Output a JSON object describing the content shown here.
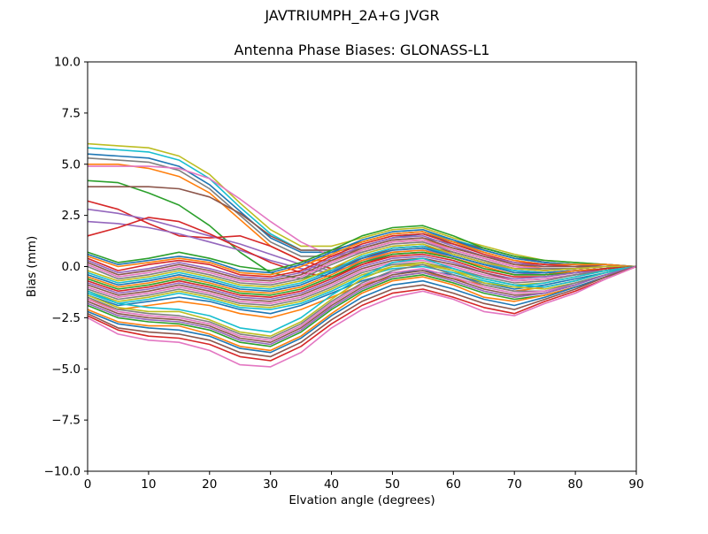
{
  "figure": {
    "suptitle": "JAVTRIUMPH_2A+G JVGR",
    "axes_title": "Antenna Phase Biases: GLONASS-L1"
  },
  "chart_data": {
    "type": "line",
    "suptitle": "JAVTRIUMPH_2A+G JVGR",
    "title": "Antenna Phase Biases: GLONASS-L1",
    "xlabel": "Elvation angle (degrees)",
    "ylabel": "Bias (mm)",
    "xlim": [
      0,
      90
    ],
    "ylim": [
      -10,
      10
    ],
    "grid": false,
    "legend": "none",
    "x_ticks": [
      0,
      10,
      20,
      30,
      40,
      50,
      60,
      70,
      80,
      90
    ],
    "y_ticks": [
      10.0,
      7.5,
      5.0,
      2.5,
      0.0,
      -2.5,
      -5.0,
      -7.5,
      -10.0
    ],
    "y_tick_labels": [
      "10.0",
      "7.5",
      "5.0",
      "2.5",
      "0.0",
      "−2.5",
      "−5.0",
      "−7.5",
      "−10.0"
    ],
    "x": [
      0,
      5,
      10,
      15,
      20,
      25,
      30,
      35,
      40,
      45,
      50,
      55,
      60,
      65,
      70,
      75,
      80,
      85,
      90
    ],
    "series": [
      {
        "name": "s01",
        "color": "#bcbd22",
        "values": [
          6.0,
          5.9,
          5.8,
          5.4,
          4.5,
          3.1,
          1.8,
          1.0,
          1.0,
          1.4,
          1.8,
          1.9,
          1.4,
          1.0,
          0.6,
          0.3,
          0.2,
          0.1,
          0.0
        ]
      },
      {
        "name": "s02",
        "color": "#17becf",
        "values": [
          5.8,
          5.7,
          5.6,
          5.2,
          4.3,
          2.9,
          1.6,
          0.8,
          0.8,
          1.2,
          1.6,
          1.7,
          1.3,
          0.9,
          0.5,
          0.2,
          0.1,
          0.1,
          0.0
        ]
      },
      {
        "name": "s03",
        "color": "#1f77b4",
        "values": [
          5.5,
          5.4,
          5.3,
          4.9,
          4.0,
          2.7,
          1.4,
          0.7,
          0.7,
          1.0,
          1.4,
          1.6,
          1.2,
          0.8,
          0.4,
          0.2,
          0.1,
          0.0,
          0.0
        ]
      },
      {
        "name": "s04",
        "color": "#7f7f7f",
        "values": [
          5.3,
          5.2,
          5.1,
          4.7,
          3.8,
          2.5,
          1.2,
          0.5,
          0.5,
          0.9,
          1.3,
          1.4,
          1.1,
          0.7,
          0.3,
          0.1,
          0.0,
          0.0,
          0.0
        ]
      },
      {
        "name": "s05",
        "color": "#ff7f0e",
        "values": [
          5.0,
          5.0,
          4.8,
          4.4,
          3.6,
          2.3,
          1.0,
          0.3,
          0.3,
          0.8,
          1.2,
          1.3,
          0.9,
          0.5,
          0.1,
          -0.1,
          -0.1,
          0.0,
          0.0
        ]
      },
      {
        "name": "s06",
        "color": "#e377c2",
        "values": [
          4.9,
          4.9,
          4.9,
          4.8,
          4.3,
          3.3,
          2.2,
          1.2,
          0.5,
          0.7,
          1.1,
          1.2,
          0.8,
          0.4,
          0.0,
          -0.2,
          -0.1,
          0.0,
          0.0
        ]
      },
      {
        "name": "s07",
        "color": "#2ca02c",
        "values": [
          4.2,
          4.1,
          3.6,
          3.0,
          2.0,
          0.7,
          -0.3,
          -0.6,
          -0.2,
          0.4,
          0.9,
          1.0,
          0.6,
          0.2,
          -0.2,
          -0.3,
          -0.2,
          -0.1,
          0.0
        ]
      },
      {
        "name": "s08",
        "color": "#8c564b",
        "values": [
          3.9,
          3.9,
          3.9,
          3.8,
          3.4,
          2.6,
          1.5,
          0.8,
          0.8,
          1.2,
          1.6,
          1.7,
          1.2,
          0.9,
          0.5,
          0.2,
          0.1,
          0.0,
          0.0
        ]
      },
      {
        "name": "s09",
        "color": "#d62728",
        "values": [
          3.2,
          2.8,
          2.1,
          1.5,
          1.4,
          1.5,
          1.0,
          0.3,
          -0.1,
          0.4,
          0.9,
          1.0,
          0.7,
          0.3,
          -0.1,
          -0.2,
          -0.1,
          0.0,
          0.0
        ]
      },
      {
        "name": "s10",
        "color": "#9467bd",
        "values": [
          2.8,
          2.6,
          2.3,
          1.9,
          1.5,
          1.1,
          0.6,
          0.1,
          -0.2,
          0.3,
          0.8,
          0.9,
          0.6,
          0.2,
          -0.2,
          -0.3,
          -0.2,
          -0.1,
          0.0
        ]
      },
      {
        "name": "s11",
        "color": "#9467bd",
        "values": [
          2.2,
          2.1,
          1.9,
          1.6,
          1.2,
          0.8,
          0.3,
          -0.1,
          -0.3,
          0.2,
          0.7,
          0.8,
          0.5,
          0.1,
          -0.3,
          -0.4,
          -0.2,
          -0.1,
          0.0
        ]
      },
      {
        "name": "s12",
        "color": "#d62728",
        "values": [
          1.5,
          1.9,
          2.4,
          2.2,
          1.6,
          0.9,
          0.2,
          -0.3,
          -0.5,
          0.1,
          0.6,
          0.7,
          0.4,
          0.0,
          -0.4,
          -0.4,
          -0.2,
          -0.1,
          0.0
        ]
      },
      {
        "name": "s13",
        "color": "#2ca02c",
        "values": [
          0.7,
          0.2,
          0.4,
          0.7,
          0.4,
          0.0,
          -0.2,
          0.2,
          0.8,
          1.5,
          1.9,
          2.0,
          1.5,
          0.9,
          0.5,
          0.3,
          0.2,
          0.1,
          0.0
        ]
      },
      {
        "name": "s14",
        "color": "#1f77b4",
        "values": [
          0.6,
          0.1,
          0.3,
          0.5,
          0.3,
          -0.2,
          -0.3,
          0.1,
          0.7,
          1.3,
          1.7,
          1.8,
          1.3,
          0.8,
          0.4,
          0.2,
          0.1,
          0.1,
          0.0
        ]
      },
      {
        "name": "s15",
        "color": "#ff7f0e",
        "values": [
          0.5,
          0.0,
          0.2,
          0.4,
          0.2,
          -0.3,
          -0.4,
          0.0,
          0.6,
          1.2,
          1.6,
          1.7,
          1.2,
          0.7,
          0.3,
          0.1,
          0.1,
          0.1,
          0.0
        ]
      },
      {
        "name": "s16",
        "color": "#d62728",
        "values": [
          0.4,
          -0.2,
          0.1,
          0.3,
          0.1,
          -0.4,
          -0.5,
          -0.2,
          0.5,
          1.1,
          1.5,
          1.6,
          1.1,
          0.6,
          0.2,
          0.1,
          0.0,
          0.0,
          0.0
        ]
      },
      {
        "name": "s17",
        "color": "#9467bd",
        "values": [
          0.3,
          -0.3,
          -0.1,
          0.2,
          -0.1,
          -0.5,
          -0.6,
          -0.3,
          0.4,
          1.0,
          1.4,
          1.5,
          1.0,
          0.5,
          0.2,
          0.0,
          0.0,
          0.0,
          0.0
        ]
      },
      {
        "name": "s18",
        "color": "#8c564b",
        "values": [
          0.2,
          -0.4,
          -0.2,
          0.1,
          -0.2,
          -0.6,
          -0.7,
          -0.4,
          0.3,
          0.9,
          1.3,
          1.4,
          0.9,
          0.5,
          0.1,
          0.0,
          0.0,
          0.0,
          0.0
        ]
      },
      {
        "name": "s19",
        "color": "#e377c2",
        "values": [
          0.1,
          -0.5,
          -0.3,
          0.0,
          -0.3,
          -0.7,
          -0.8,
          -0.5,
          0.2,
          0.8,
          1.2,
          1.3,
          0.8,
          0.4,
          0.0,
          -0.1,
          -0.1,
          0.0,
          0.0
        ]
      },
      {
        "name": "s20",
        "color": "#7f7f7f",
        "values": [
          0.0,
          -0.6,
          -0.4,
          -0.1,
          -0.4,
          -0.8,
          -0.9,
          -0.6,
          0.1,
          0.7,
          1.1,
          1.2,
          0.7,
          0.3,
          -0.1,
          -0.1,
          -0.1,
          0.0,
          0.0
        ]
      },
      {
        "name": "s21",
        "color": "#bcbd22",
        "values": [
          -0.2,
          -0.7,
          -0.5,
          -0.2,
          -0.5,
          -0.9,
          -1.0,
          -0.7,
          -0.1,
          0.6,
          1.0,
          1.1,
          0.6,
          0.2,
          -0.1,
          -0.2,
          -0.1,
          0.0,
          0.0
        ]
      },
      {
        "name": "s22",
        "color": "#17becf",
        "values": [
          -0.3,
          -0.8,
          -0.6,
          -0.3,
          -0.6,
          -1.0,
          -1.1,
          -0.8,
          -0.2,
          0.5,
          0.9,
          1.0,
          0.5,
          0.1,
          -0.2,
          -0.3,
          -0.2,
          -0.1,
          0.0
        ]
      },
      {
        "name": "s23",
        "color": "#1f77b4",
        "values": [
          -0.4,
          -0.9,
          -0.7,
          -0.4,
          -0.7,
          -1.1,
          -1.2,
          -0.9,
          -0.3,
          0.4,
          0.8,
          0.9,
          0.5,
          0.1,
          -0.3,
          -0.3,
          -0.2,
          -0.1,
          0.0
        ]
      },
      {
        "name": "s24",
        "color": "#ff7f0e",
        "values": [
          -0.5,
          -1.0,
          -0.8,
          -0.5,
          -0.8,
          -1.2,
          -1.3,
          -1.0,
          -0.4,
          0.3,
          0.7,
          0.8,
          0.4,
          0.0,
          -0.4,
          -0.4,
          -0.2,
          -0.1,
          0.0
        ]
      },
      {
        "name": "s25",
        "color": "#2ca02c",
        "values": [
          -0.6,
          -1.1,
          -0.9,
          -0.6,
          -0.9,
          -1.3,
          -1.4,
          -1.1,
          -0.5,
          0.2,
          0.6,
          0.7,
          0.4,
          -0.1,
          -0.4,
          -0.4,
          -0.3,
          -0.1,
          0.0
        ]
      },
      {
        "name": "s26",
        "color": "#d62728",
        "values": [
          -0.7,
          -1.2,
          -1.0,
          -0.7,
          -1.0,
          -1.4,
          -1.5,
          -1.2,
          -0.6,
          0.1,
          0.5,
          0.6,
          0.3,
          -0.2,
          -0.5,
          -0.5,
          -0.3,
          -0.1,
          0.0
        ]
      },
      {
        "name": "s27",
        "color": "#9467bd",
        "values": [
          -0.8,
          -1.3,
          -1.1,
          -0.8,
          -1.1,
          -1.5,
          -1.6,
          -1.3,
          -0.7,
          0.0,
          0.4,
          0.5,
          0.2,
          -0.3,
          -0.6,
          -0.5,
          -0.3,
          -0.2,
          0.0
        ]
      },
      {
        "name": "s28",
        "color": "#8c564b",
        "values": [
          -0.9,
          -1.4,
          -1.2,
          -0.9,
          -1.2,
          -1.6,
          -1.7,
          -1.4,
          -0.8,
          -0.1,
          0.3,
          0.4,
          0.1,
          -0.3,
          -0.7,
          -0.6,
          -0.4,
          -0.2,
          0.0
        ]
      },
      {
        "name": "s29",
        "color": "#e377c2",
        "values": [
          -1.0,
          -1.5,
          -1.3,
          -1.0,
          -1.3,
          -1.7,
          -1.8,
          -1.5,
          -0.9,
          -0.2,
          0.2,
          0.3,
          0.0,
          -0.4,
          -0.7,
          -0.6,
          -0.4,
          -0.2,
          0.0
        ]
      },
      {
        "name": "s30",
        "color": "#7f7f7f",
        "values": [
          -1.1,
          -1.6,
          -1.4,
          -1.1,
          -1.4,
          -1.8,
          -1.9,
          -1.6,
          -1.0,
          -0.3,
          0.1,
          0.2,
          -0.1,
          -0.5,
          -0.8,
          -0.7,
          -0.4,
          -0.2,
          0.0
        ]
      },
      {
        "name": "s31",
        "color": "#bcbd22",
        "values": [
          -1.2,
          -1.7,
          -1.5,
          -1.2,
          -1.5,
          -1.9,
          -2.0,
          -1.7,
          -1.1,
          -0.4,
          0.0,
          0.1,
          -0.2,
          -0.6,
          -0.9,
          -0.8,
          -0.5,
          -0.2,
          0.0
        ]
      },
      {
        "name": "s32",
        "color": "#17becf",
        "values": [
          -1.3,
          -1.8,
          -1.6,
          -1.3,
          -1.6,
          -2.0,
          -2.1,
          -1.8,
          -1.2,
          -0.5,
          -0.1,
          0.0,
          -0.3,
          -0.7,
          -1.0,
          -0.8,
          -0.5,
          -0.2,
          0.0
        ]
      },
      {
        "name": "s33",
        "color": "#1f77b4",
        "values": [
          -1.4,
          -1.9,
          -1.7,
          -1.5,
          -1.7,
          -2.1,
          -2.3,
          -1.9,
          -1.3,
          -0.7,
          -0.3,
          -0.2,
          -0.4,
          -0.8,
          -1.1,
          -0.9,
          -0.6,
          -0.3,
          0.0
        ]
      },
      {
        "name": "s34",
        "color": "#ff7f0e",
        "values": [
          -1.6,
          -2.1,
          -1.9,
          -1.7,
          -1.9,
          -2.3,
          -2.5,
          -2.1,
          -1.5,
          -0.9,
          -0.5,
          -0.3,
          -0.6,
          -0.9,
          -1.2,
          -1.0,
          -0.7,
          -0.3,
          0.0
        ]
      },
      {
        "name": "s35",
        "color": "#17becf",
        "values": [
          -1.2,
          -1.8,
          -2.0,
          -2.1,
          -2.4,
          -3.0,
          -3.2,
          -2.5,
          -1.4,
          -0.5,
          0.2,
          0.4,
          -0.1,
          -0.6,
          -0.9,
          -1.0,
          -0.7,
          -0.3,
          0.0
        ]
      },
      {
        "name": "s36",
        "color": "#bcbd22",
        "values": [
          -1.4,
          -2.0,
          -2.2,
          -2.2,
          -2.6,
          -3.2,
          -3.4,
          -2.7,
          -1.6,
          -0.6,
          0.0,
          0.2,
          -0.2,
          -0.8,
          -1.0,
          -1.1,
          -0.8,
          -0.4,
          0.0
        ]
      },
      {
        "name": "s37",
        "color": "#7f7f7f",
        "values": [
          -1.5,
          -2.1,
          -2.3,
          -2.4,
          -2.7,
          -3.3,
          -3.5,
          -2.8,
          -1.7,
          -0.8,
          -0.2,
          0.1,
          -0.4,
          -0.9,
          -1.2,
          -1.2,
          -0.8,
          -0.4,
          0.0
        ]
      },
      {
        "name": "s38",
        "color": "#e377c2",
        "values": [
          -1.6,
          -2.2,
          -2.4,
          -2.5,
          -2.8,
          -3.4,
          -3.6,
          -2.9,
          -1.8,
          -0.9,
          -0.3,
          -0.1,
          -0.5,
          -1.0,
          -1.3,
          -1.2,
          -0.9,
          -0.4,
          0.0
        ]
      },
      {
        "name": "s39",
        "color": "#8c564b",
        "values": [
          -1.7,
          -2.3,
          -2.5,
          -2.6,
          -2.9,
          -3.5,
          -3.7,
          -3.0,
          -1.9,
          -1.0,
          -0.4,
          -0.2,
          -0.6,
          -1.1,
          -1.4,
          -1.3,
          -0.9,
          -0.4,
          0.0
        ]
      },
      {
        "name": "s40",
        "color": "#9467bd",
        "values": [
          -1.8,
          -2.4,
          -2.6,
          -2.7,
          -3.0,
          -3.6,
          -3.8,
          -3.1,
          -2.0,
          -1.1,
          -0.5,
          -0.3,
          -0.7,
          -1.2,
          -1.5,
          -1.3,
          -0.9,
          -0.4,
          0.0
        ]
      },
      {
        "name": "s41",
        "color": "#2ca02c",
        "values": [
          -1.9,
          -2.5,
          -2.7,
          -2.8,
          -3.1,
          -3.7,
          -3.9,
          -3.2,
          -2.1,
          -1.2,
          -0.6,
          -0.4,
          -0.8,
          -1.3,
          -1.6,
          -1.4,
          -1.0,
          -0.5,
          0.0
        ]
      },
      {
        "name": "s42",
        "color": "#ff7f0e",
        "values": [
          -2.1,
          -2.7,
          -2.9,
          -2.9,
          -3.3,
          -3.9,
          -4.1,
          -3.4,
          -2.3,
          -1.3,
          -0.7,
          -0.5,
          -0.9,
          -1.5,
          -1.7,
          -1.4,
          -1.0,
          -0.5,
          0.0
        ]
      },
      {
        "name": "s43",
        "color": "#1f77b4",
        "values": [
          -2.2,
          -2.8,
          -3.0,
          -3.1,
          -3.4,
          -4.0,
          -4.2,
          -3.5,
          -2.4,
          -1.5,
          -0.9,
          -0.7,
          -1.1,
          -1.6,
          -1.9,
          -1.5,
          -1.0,
          -0.5,
          0.0
        ]
      },
      {
        "name": "s44",
        "color": "#8c564b",
        "values": [
          -2.3,
          -3.0,
          -3.2,
          -3.3,
          -3.6,
          -4.2,
          -4.4,
          -3.7,
          -2.6,
          -1.7,
          -1.1,
          -0.9,
          -1.3,
          -1.8,
          -2.1,
          -1.6,
          -1.1,
          -0.5,
          0.0
        ]
      },
      {
        "name": "s45",
        "color": "#d62728",
        "values": [
          -2.4,
          -3.1,
          -3.4,
          -3.5,
          -3.8,
          -4.4,
          -4.6,
          -3.9,
          -2.8,
          -1.9,
          -1.3,
          -1.1,
          -1.5,
          -2.0,
          -2.3,
          -1.7,
          -1.2,
          -0.6,
          0.0
        ]
      },
      {
        "name": "s46",
        "color": "#e377c2",
        "values": [
          -2.5,
          -3.3,
          -3.6,
          -3.7,
          -4.1,
          -4.8,
          -4.9,
          -4.2,
          -3.0,
          -2.1,
          -1.5,
          -1.2,
          -1.6,
          -2.2,
          -2.4,
          -1.8,
          -1.3,
          -0.6,
          0.0
        ]
      }
    ]
  }
}
